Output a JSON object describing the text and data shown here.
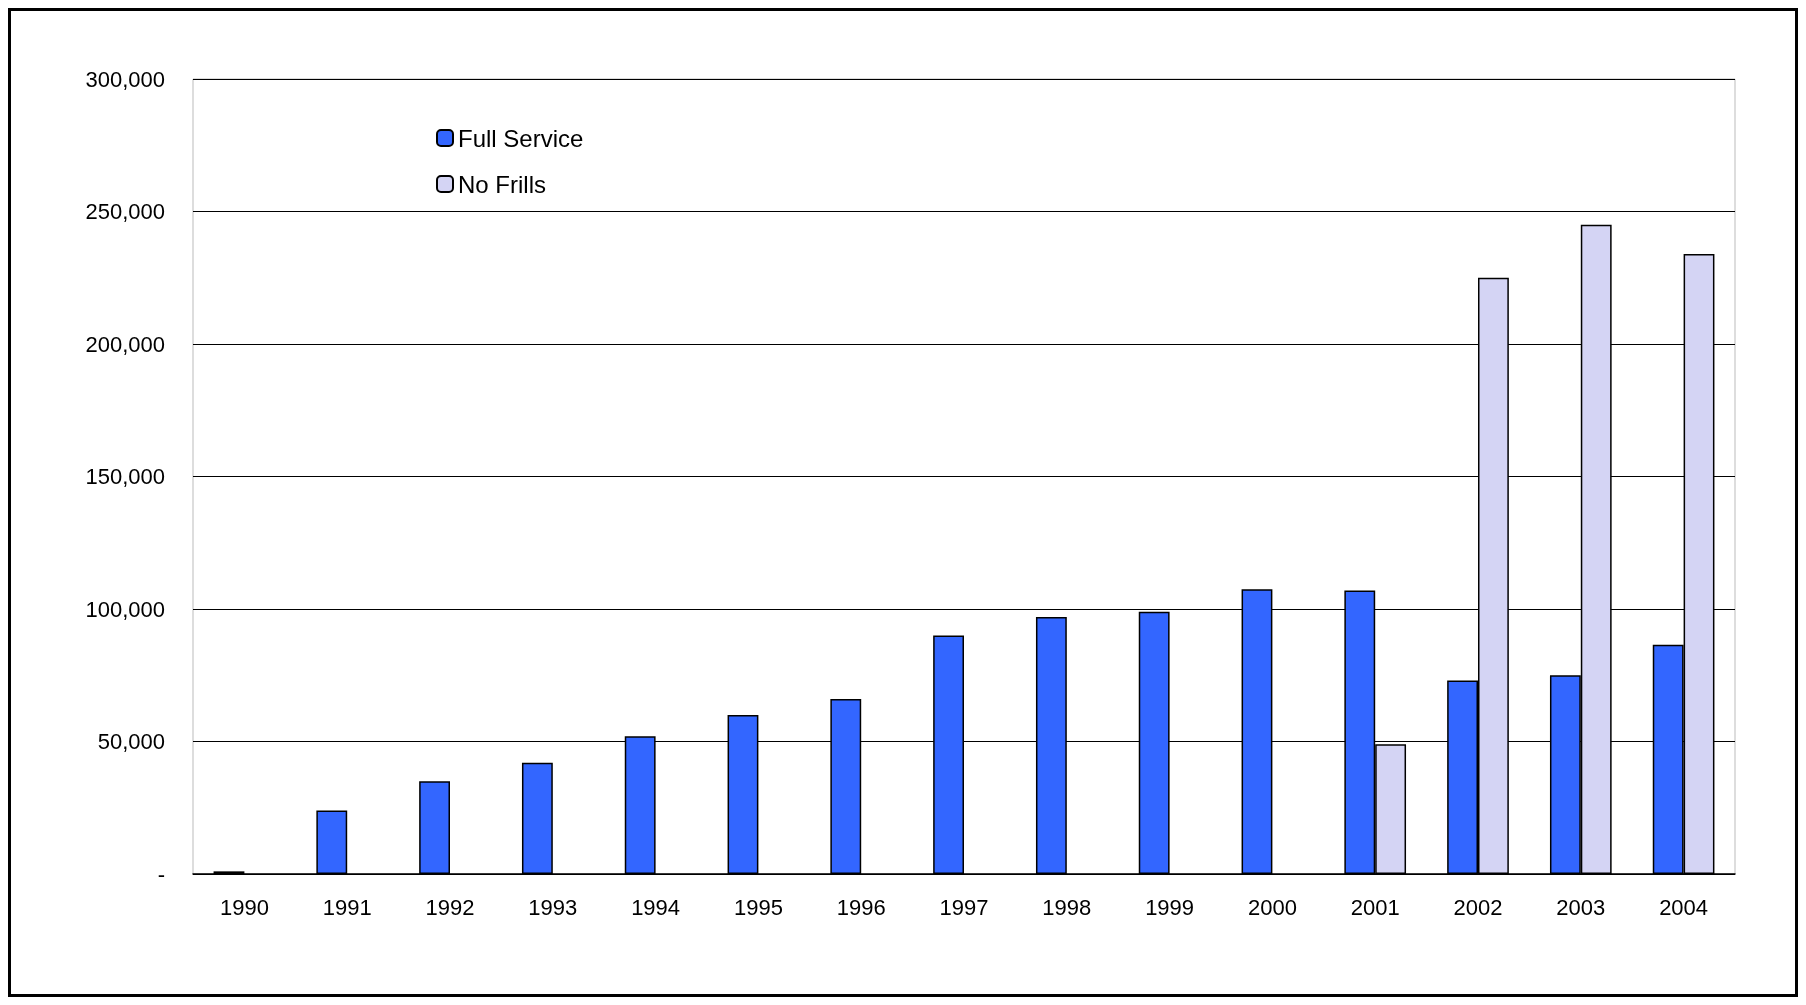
{
  "chart_data": {
    "type": "bar",
    "categories": [
      "1990",
      "1991",
      "1992",
      "1993",
      "1994",
      "1995",
      "1996",
      "1997",
      "1998",
      "1999",
      "2000",
      "2001",
      "2002",
      "2003",
      "2004"
    ],
    "series": [
      {
        "name": "Full Service",
        "color": "#3366ff",
        "values": [
          1000,
          24000,
          35000,
          42000,
          52000,
          60000,
          66000,
          90000,
          97000,
          99000,
          107500,
          107000,
          73000,
          75000,
          86500
        ]
      },
      {
        "name": "No Frills",
        "color": "#d4d4f4",
        "values": [
          null,
          null,
          null,
          null,
          null,
          null,
          null,
          null,
          null,
          null,
          null,
          49000,
          225000,
          245000,
          234000
        ]
      }
    ],
    "ylim": [
      0,
      300000
    ],
    "yticks": [
      {
        "value": 0,
        "label": "-"
      },
      {
        "value": 50000,
        "label": "50,000"
      },
      {
        "value": 100000,
        "label": "100,000"
      },
      {
        "value": 150000,
        "label": "150,000"
      },
      {
        "value": 200000,
        "label": "200,000"
      },
      {
        "value": 250000,
        "label": "250,000"
      },
      {
        "value": 300000,
        "label": "300,000"
      }
    ],
    "grid": "y",
    "legend": "top left"
  }
}
